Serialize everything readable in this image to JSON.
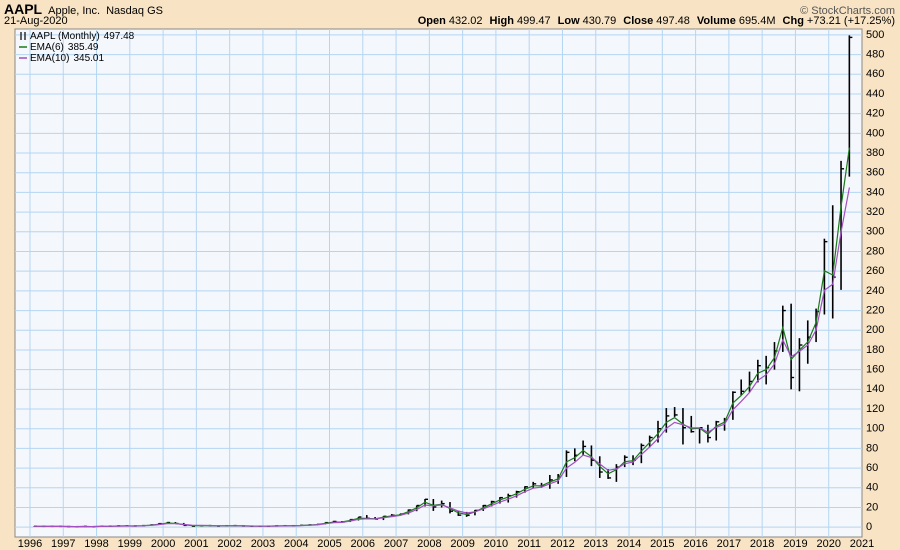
{
  "header": {
    "symbol": "AAPL",
    "company": "Apple, Inc.",
    "exchange": "Nasdaq GS",
    "date": "21-Aug-2020",
    "credit": "© StockCharts.com",
    "quote": [
      {
        "label": "Open",
        "value": "432.02"
      },
      {
        "label": "High",
        "value": "499.47"
      },
      {
        "label": "Low",
        "value": "430.79"
      },
      {
        "label": "Close",
        "value": "497.48"
      },
      {
        "label": "Volume",
        "value": "695.4M"
      },
      {
        "label": "Chg",
        "value": "+73.21 (+17.25%)"
      }
    ]
  },
  "chart_data": {
    "type": "ohlc",
    "grid": true,
    "background": "#f4f7fc",
    "grid_color": "#b4d6f2",
    "xlim": [
      1995.55,
      2021
    ],
    "xticks": [
      1996,
      1997,
      1998,
      1999,
      2000,
      2001,
      2002,
      2003,
      2004,
      2005,
      2006,
      2007,
      2008,
      2009,
      2010,
      2011,
      2012,
      2013,
      2014,
      2015,
      2016,
      2017,
      2018,
      2019,
      2020,
      2021
    ],
    "ylim": [
      -10,
      506
    ],
    "yticks": [
      0,
      20,
      40,
      60,
      80,
      100,
      120,
      140,
      160,
      180,
      200,
      220,
      240,
      260,
      280,
      300,
      320,
      340,
      360,
      380,
      400,
      420,
      440,
      460,
      480,
      500
    ],
    "x": [
      1996,
      1996.25,
      1996.5,
      1996.75,
      1997,
      1997.25,
      1997.5,
      1997.75,
      1998,
      1998.25,
      1998.5,
      1998.75,
      1999,
      1999.25,
      1999.5,
      1999.75,
      2000,
      2000.25,
      2000.5,
      2000.75,
      2001,
      2001.25,
      2001.5,
      2001.75,
      2002,
      2002.25,
      2002.5,
      2002.75,
      2003,
      2003.25,
      2003.5,
      2003.75,
      2004,
      2004.25,
      2004.5,
      2004.75,
      2005,
      2005.25,
      2005.5,
      2005.75,
      2006,
      2006.25,
      2006.5,
      2006.75,
      2007,
      2007.25,
      2007.5,
      2007.75,
      2008,
      2008.25,
      2008.5,
      2008.75,
      2009,
      2009.25,
      2009.5,
      2009.75,
      2010,
      2010.25,
      2010.5,
      2010.75,
      2011,
      2011.25,
      2011.5,
      2011.75,
      2012,
      2012.25,
      2012.5,
      2012.75,
      2013,
      2013.25,
      2013.5,
      2013.75,
      2014,
      2014.25,
      2014.5,
      2014.75,
      2015,
      2015.25,
      2015.5,
      2015.75,
      2016,
      2016.25,
      2016.5,
      2016.75,
      2017,
      2017.25,
      2017.5,
      2017.75,
      2018,
      2018.25,
      2018.5,
      2018.75,
      2019,
      2019.25,
      2019.5,
      2019.75,
      2020,
      2020.25,
      2020.5
    ],
    "series": [
      {
        "name": "AAPL (Monthly)",
        "color": "#000000",
        "high": [
          1.2,
          0.9,
          0.8,
          0.9,
          0.8,
          0.7,
          0.9,
          0.8,
          0.9,
          1.1,
          1.3,
          1.5,
          1.4,
          1.7,
          2.5,
          4.0,
          5.0,
          5.2,
          4.3,
          1.9,
          1.5,
          1.8,
          1.7,
          1.6,
          1.8,
          1.8,
          1.3,
          1.2,
          1.1,
          1.4,
          1.6,
          1.7,
          1.9,
          2.4,
          2.8,
          4.7,
          6.4,
          6.2,
          7.8,
          10.3,
          12.3,
          10.3,
          11.2,
          13.3,
          13.5,
          18.0,
          22.0,
          28.6,
          28.6,
          27.0,
          25.5,
          16.0,
          15.5,
          17.5,
          22.5,
          26.8,
          30.5,
          34,
          37,
          41.5,
          46,
          45,
          53,
          54,
          78,
          80,
          88,
          83,
          72,
          59,
          64,
          73,
          73,
          85,
          93,
          108,
          121,
          122,
          121,
          113,
          101,
          104,
          108,
          111,
          138,
          150,
          158,
          170,
          174,
          188,
          225,
          227,
          192,
          210,
          222,
          293,
          327,
          372,
          499.47
        ],
        "low": [
          0.8,
          0.7,
          0.6,
          0.7,
          0.5,
          0.5,
          0.5,
          0.4,
          0.5,
          0.8,
          0.9,
          1.0,
          1.1,
          1.1,
          1.6,
          2.2,
          3.2,
          3.5,
          1.8,
          1.0,
          1.0,
          1.3,
          1.1,
          1.0,
          1.4,
          1.1,
          1.0,
          0.9,
          0.9,
          0.9,
          1.3,
          1.3,
          1.4,
          1.8,
          2.0,
          2.8,
          4.2,
          4.4,
          5.2,
          6.8,
          8.4,
          7.9,
          7.2,
          10.8,
          11.7,
          13.0,
          16.2,
          21.0,
          16.5,
          20.0,
          14.0,
          11.5,
          10.5,
          12,
          16.5,
          21,
          24,
          25,
          30,
          35,
          40,
          40,
          39,
          44,
          51,
          67,
          73,
          62,
          50,
          49,
          46,
          61,
          63,
          65,
          81,
          86,
          96,
          112,
          84,
          96,
          85,
          86,
          88,
          98,
          109,
          134,
          137,
          147,
          145,
          160,
          178,
          140,
          138,
          166,
          188,
          216,
          212,
          241,
          356
        ],
        "close": [
          0.9,
          0.8,
          0.8,
          0.8,
          0.6,
          0.5,
          0.8,
          0.5,
          0.9,
          1.0,
          1.3,
          1.4,
          1.2,
          1.6,
          2.3,
          3.6,
          4.7,
          3.7,
          1.8,
          1.0,
          1.5,
          1.6,
          1.1,
          1.5,
          1.6,
          1.2,
          1.0,
          1.0,
          1.0,
          1.3,
          1.5,
          1.5,
          1.9,
          2.3,
          2.8,
          4.6,
          5.8,
          5.3,
          7.7,
          10.3,
          9.0,
          8.2,
          11.0,
          12.1,
          13.3,
          17.4,
          22.0,
          28.3,
          20.5,
          23.9,
          16.2,
          12.2,
          12,
          17,
          22,
          26,
          30,
          32,
          36,
          41,
          44,
          42,
          48,
          51,
          76,
          73,
          82,
          68,
          56,
          50,
          61,
          71,
          68,
          83,
          91,
          100,
          113,
          114,
          101,
          97,
          101,
          91,
          107,
          109,
          137,
          138,
          148,
          164,
          162,
          179,
          220,
          152,
          185,
          193,
          219,
          290,
          254,
          364,
          497.48
        ]
      },
      {
        "name": "EMA(6)",
        "color": "#1a7a1a",
        "values": [
          0.9,
          0.8,
          0.8,
          0.8,
          0.7,
          0.6,
          0.7,
          0.6,
          0.8,
          0.9,
          1.2,
          1.3,
          1.2,
          1.5,
          2.0,
          3.0,
          4.1,
          3.8,
          2.5,
          1.6,
          1.5,
          1.6,
          1.3,
          1.4,
          1.5,
          1.3,
          1.1,
          1.0,
          1.0,
          1.2,
          1.4,
          1.5,
          1.7,
          2.1,
          2.6,
          3.9,
          5.1,
          5.2,
          6.8,
          9.0,
          9.0,
          8.5,
          10.1,
          11.4,
          12.6,
          15.7,
          19.7,
          25.2,
          22.2,
          23.3,
          18.8,
          14.6,
          12.9,
          15.5,
          19.7,
          23.7,
          27.7,
          30.5,
          34.0,
          38.5,
          42.0,
          42.0,
          45.8,
          49.1,
          66.3,
          70.6,
          77.9,
          71.6,
          61.6,
          54.2,
          58.5,
          66.5,
          67.5,
          77.4,
          86.1,
          95.0,
          106.5,
          111.3,
          104.7,
          99.8,
          100.6,
          94.5,
          102.5,
          106.7,
          126.1,
          133.7,
          142.9,
          156.4,
          160.0,
          172.2,
          202.8,
          170.3,
          179.7,
          188.2,
          207.9,
          260.4,
          256.1,
          325.2,
          385.49
        ]
      },
      {
        "name": "EMA(10)",
        "color": "#a24fc0",
        "values": [
          0.9,
          0.9,
          0.8,
          0.8,
          0.7,
          0.6,
          0.7,
          0.6,
          0.8,
          0.9,
          1.1,
          1.2,
          1.2,
          1.4,
          1.8,
          2.6,
          3.6,
          3.6,
          2.8,
          2.0,
          1.8,
          1.7,
          1.4,
          1.5,
          1.5,
          1.4,
          1.2,
          1.1,
          1.1,
          1.2,
          1.3,
          1.4,
          1.6,
          1.9,
          2.3,
          3.4,
          4.5,
          4.8,
          6.1,
          8.0,
          8.5,
          8.3,
          9.5,
          10.7,
          11.9,
          14.4,
          17.8,
          22.5,
          21.6,
          22.6,
          19.7,
          16.4,
          14.4,
          15.6,
          18.5,
          21.9,
          25.5,
          28.4,
          31.8,
          36.0,
          39.6,
          40.7,
          44.0,
          47.2,
          60.1,
          65.9,
          73.2,
          70.8,
          64.2,
          57.8,
          59.2,
          64.5,
          66.1,
          73.7,
          81.5,
          89.8,
          100.3,
          106.4,
          104.0,
          100.9,
          100.9,
          96.5,
          101.2,
          104.7,
          119.2,
          127.7,
          136.8,
          149.1,
          154.9,
          165.7,
          190.2,
          173.0,
          178.4,
          185.0,
          200.3,
          240.7,
          246.7,
          299.5,
          345.01
        ]
      }
    ]
  }
}
